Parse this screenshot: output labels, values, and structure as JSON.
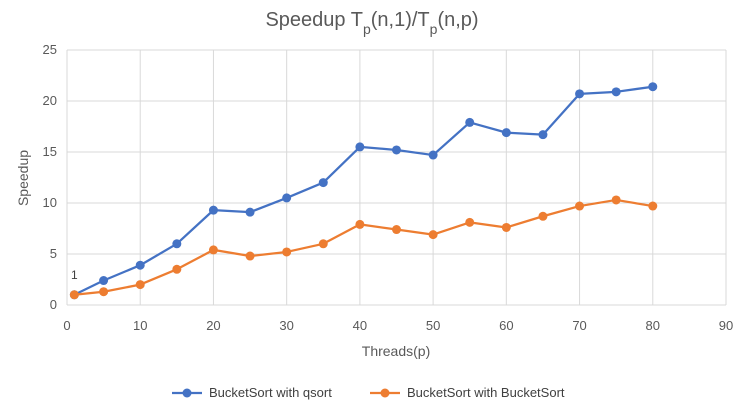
{
  "chart_data": {
    "type": "line",
    "title": {
      "parts": [
        {
          "text": "Speedup T",
          "sub": false
        },
        {
          "text": "p",
          "sub": true
        },
        {
          "text": "(n,1)/T",
          "sub": false
        },
        {
          "text": "p",
          "sub": true
        },
        {
          "text": "(n,p)",
          "sub": false
        }
      ]
    },
    "xlabel": "Threads(p)",
    "ylabel": "Speedup",
    "xlim": [
      0,
      90
    ],
    "ylim": [
      0,
      25
    ],
    "xticks": [
      0,
      10,
      20,
      30,
      40,
      50,
      60,
      70,
      80,
      90
    ],
    "yticks": [
      0,
      5,
      10,
      15,
      20,
      25
    ],
    "grid": true,
    "legend_position": "bottom",
    "x": [
      1,
      5,
      10,
      15,
      20,
      25,
      30,
      35,
      40,
      45,
      50,
      55,
      60,
      65,
      70,
      75,
      80
    ],
    "series": [
      {
        "name": "BucketSort with qsort",
        "color": "#4472c4",
        "values": [
          1,
          2.4,
          3.9,
          6.0,
          9.3,
          9.1,
          10.5,
          12.0,
          15.5,
          15.2,
          14.7,
          17.9,
          16.9,
          16.7,
          20.7,
          20.9,
          21.4
        ]
      },
      {
        "name": "BucketSort with BucketSort",
        "color": "#ed7d31",
        "values": [
          1,
          1.3,
          2.0,
          3.5,
          5.4,
          4.8,
          5.2,
          6.0,
          7.9,
          7.4,
          6.9,
          8.1,
          7.6,
          8.7,
          9.7,
          10.3,
          9.7
        ]
      }
    ],
    "annotations": [
      {
        "text": "1",
        "x": 1,
        "y": 1
      }
    ]
  }
}
